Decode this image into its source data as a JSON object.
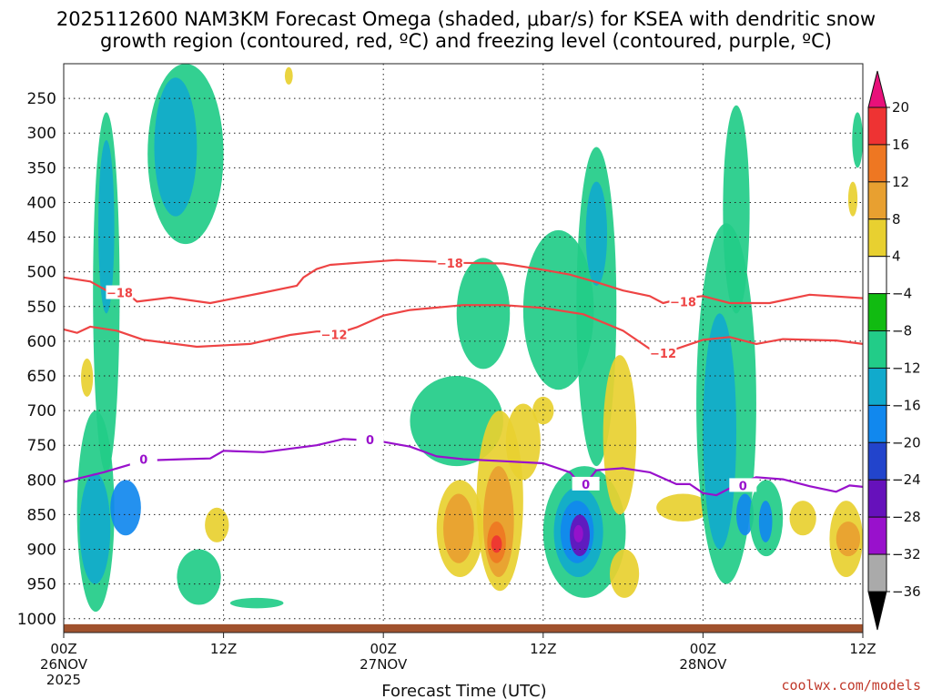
{
  "chart_data": {
    "type": "heatmap",
    "title_line1": "2025112600 NAM3KM Forecast Omega (shaded, μbar/s) for KSEA with dendritic snow",
    "title_line2": "growth region (contoured, red, ºC) and freezing level (contoured, purple, ºC)",
    "xlabel": "Forecast Time (UTC)",
    "xlim": [
      0,
      60
    ],
    "ylim": [
      1020,
      200
    ],
    "x_ticks": [
      {
        "x": 0,
        "l1": "00Z",
        "l2": "26NOV",
        "l3": "2025"
      },
      {
        "x": 12,
        "l1": "12Z",
        "l2": "",
        "l3": ""
      },
      {
        "x": 24,
        "l1": "00Z",
        "l2": "27NOV",
        "l3": ""
      },
      {
        "x": 36,
        "l1": "12Z",
        "l2": "",
        "l3": ""
      },
      {
        "x": 48,
        "l1": "00Z",
        "l2": "28NOV",
        "l3": ""
      },
      {
        "x": 60,
        "l1": "12Z",
        "l2": "",
        "l3": ""
      }
    ],
    "y_ticks": [
      "250",
      "300",
      "350",
      "400",
      "450",
      "500",
      "550",
      "600",
      "650",
      "700",
      "750",
      "800",
      "850",
      "900",
      "950",
      "1000"
    ],
    "colorbar": {
      "levels": [
        "20",
        "16",
        "12",
        "8",
        "4",
        "−4",
        "−8",
        "−12",
        "−16",
        "−20",
        "−24",
        "−28",
        "−32",
        "−36"
      ],
      "colors": [
        "#e8107a",
        "#ee3333",
        "#ee7722",
        "#e8a030",
        "#e8d030",
        "#ffffff",
        "#11bb11",
        "#22cc88",
        "#11aacc",
        "#1188ee",
        "#2244cc",
        "#6611bb",
        "#9911cc",
        "#aaaaaa",
        "#000000"
      ]
    },
    "contours": [
      {
        "name": "dgz-top-minus18",
        "label": "−18",
        "label_at": [
          [
            4.2,
            530
          ],
          [
            29,
            487
          ],
          [
            46.5,
            543
          ]
        ],
        "color": "#ee4444",
        "points": [
          [
            0,
            508
          ],
          [
            2,
            514
          ],
          [
            3.5,
            530
          ],
          [
            4.7,
            530
          ],
          [
            5.5,
            543
          ],
          [
            8,
            537
          ],
          [
            11,
            545
          ],
          [
            15,
            530
          ],
          [
            17.5,
            520
          ],
          [
            18,
            508
          ],
          [
            19,
            496
          ],
          [
            20,
            490
          ],
          [
            22,
            487
          ],
          [
            25,
            483
          ],
          [
            30,
            487
          ],
          [
            33,
            488
          ],
          [
            36,
            497
          ],
          [
            38,
            504
          ],
          [
            40,
            515
          ],
          [
            42,
            527
          ],
          [
            44,
            535
          ],
          [
            45,
            545
          ],
          [
            46.5,
            538
          ],
          [
            48,
            535
          ],
          [
            50,
            545
          ],
          [
            53,
            545
          ],
          [
            56,
            533
          ],
          [
            60,
            538
          ]
        ]
      },
      {
        "name": "dgz-bottom-minus12",
        "label": "−12",
        "label_at": [
          [
            20.3,
            590
          ],
          [
            45,
            617
          ]
        ],
        "color": "#ee4444",
        "points": [
          [
            0,
            583
          ],
          [
            1,
            588
          ],
          [
            2,
            579
          ],
          [
            4,
            585
          ],
          [
            6,
            598
          ],
          [
            10,
            608
          ],
          [
            14,
            604
          ],
          [
            17,
            591
          ],
          [
            19,
            586
          ],
          [
            21,
            586
          ],
          [
            22,
            580
          ],
          [
            24,
            563
          ],
          [
            26,
            555
          ],
          [
            30,
            548
          ],
          [
            33,
            548
          ],
          [
            36,
            552
          ],
          [
            39,
            561
          ],
          [
            42,
            585
          ],
          [
            44,
            611
          ],
          [
            46,
            611
          ],
          [
            48,
            598
          ],
          [
            50,
            594
          ],
          [
            52,
            604
          ],
          [
            54,
            597
          ],
          [
            58,
            599
          ],
          [
            60,
            604
          ]
        ]
      },
      {
        "name": "freezing-level-0c",
        "label": "0",
        "label_at": [
          [
            6,
            770
          ],
          [
            23,
            742
          ],
          [
            39.2,
            806
          ],
          [
            51,
            808
          ]
        ],
        "color": "#9911cc",
        "points": [
          [
            0,
            803
          ],
          [
            3,
            789
          ],
          [
            6,
            772
          ],
          [
            9,
            770
          ],
          [
            11,
            769
          ],
          [
            12,
            758
          ],
          [
            15,
            760
          ],
          [
            19,
            750
          ],
          [
            21,
            741
          ],
          [
            22,
            742
          ],
          [
            24,
            745
          ],
          [
            26,
            752
          ],
          [
            28,
            766
          ],
          [
            30,
            770
          ],
          [
            33,
            773
          ],
          [
            36,
            776
          ],
          [
            38,
            789
          ],
          [
            39,
            810
          ],
          [
            40,
            786
          ],
          [
            42,
            783
          ],
          [
            44,
            789
          ],
          [
            46,
            806
          ],
          [
            47,
            806
          ],
          [
            48,
            819
          ],
          [
            49,
            822
          ],
          [
            50,
            812
          ],
          [
            52,
            796
          ],
          [
            54,
            799
          ],
          [
            56,
            809
          ],
          [
            58,
            817
          ],
          [
            59,
            808
          ],
          [
            60,
            810
          ]
        ]
      }
    ],
    "omega_regions": [
      {
        "v": -8,
        "x": [
          1.0,
          3.8
        ],
        "y": [
          700,
          990
        ]
      },
      {
        "v": -12,
        "x": [
          1.2,
          3.5
        ],
        "y": [
          790,
          950
        ]
      },
      {
        "v": -16,
        "x": [
          3.5,
          5.8
        ],
        "y": [
          800,
          880
        ]
      },
      {
        "v": -8,
        "x": [
          2.2,
          4.2
        ],
        "y": [
          270,
          790
        ]
      },
      {
        "v": -12,
        "x": [
          2.6,
          3.8
        ],
        "y": [
          310,
          560
        ]
      },
      {
        "v": -8,
        "x": [
          6.3,
          12.0
        ],
        "y": [
          200,
          460
        ]
      },
      {
        "v": -12,
        "x": [
          6.8,
          10.0
        ],
        "y": [
          220,
          420
        ]
      },
      {
        "v": -8,
        "x": [
          8.5,
          11.8
        ],
        "y": [
          900,
          980
        ]
      },
      {
        "v": -8,
        "x": [
          12.5,
          16.5
        ],
        "y": [
          970,
          985
        ]
      },
      {
        "v": 4,
        "x": [
          10.6,
          12.4
        ],
        "y": [
          840,
          890
        ]
      },
      {
        "v": 4,
        "x": [
          1.3,
          2.2
        ],
        "y": [
          625,
          680
        ]
      },
      {
        "v": 4,
        "x": [
          16.6,
          17.2
        ],
        "y": [
          205,
          230
        ]
      },
      {
        "v": -8,
        "x": [
          26.0,
          33.0
        ],
        "y": [
          650,
          780
        ]
      },
      {
        "v": -8,
        "x": [
          29.5,
          33.5
        ],
        "y": [
          480,
          640
        ]
      },
      {
        "v": -8,
        "x": [
          34.5,
          39.8
        ],
        "y": [
          440,
          670
        ]
      },
      {
        "v": 4,
        "x": [
          28.0,
          31.5
        ],
        "y": [
          800,
          940
        ]
      },
      {
        "v": 8,
        "x": [
          28.5,
          30.8
        ],
        "y": [
          820,
          920
        ]
      },
      {
        "v": 4,
        "x": [
          31.0,
          34.5
        ],
        "y": [
          700,
          960
        ]
      },
      {
        "v": 8,
        "x": [
          31.5,
          33.8
        ],
        "y": [
          780,
          940
        ]
      },
      {
        "v": 12,
        "x": [
          31.8,
          33.2
        ],
        "y": [
          860,
          920
        ]
      },
      {
        "v": 16,
        "x": [
          32.1,
          32.9
        ],
        "y": [
          880,
          905
        ]
      },
      {
        "v": 4,
        "x": [
          33.2,
          35.8
        ],
        "y": [
          690,
          800
        ]
      },
      {
        "v": 4,
        "x": [
          35.2,
          36.8
        ],
        "y": [
          680,
          720
        ]
      },
      {
        "v": -8,
        "x": [
          36.0,
          42.2
        ],
        "y": [
          780,
          970
        ]
      },
      {
        "v": -12,
        "x": [
          36.8,
          40.5
        ],
        "y": [
          810,
          940
        ]
      },
      {
        "v": -16,
        "x": [
          37.3,
          39.8
        ],
        "y": [
          830,
          920
        ]
      },
      {
        "v": -24,
        "x": [
          38.0,
          39.5
        ],
        "y": [
          850,
          910
        ]
      },
      {
        "v": -28,
        "x": [
          38.3,
          39.0
        ],
        "y": [
          865,
          890
        ]
      },
      {
        "v": -8,
        "x": [
          38.5,
          41.5
        ],
        "y": [
          320,
          780
        ]
      },
      {
        "v": -12,
        "x": [
          39.2,
          40.8
        ],
        "y": [
          370,
          520
        ]
      },
      {
        "v": 4,
        "x": [
          40.5,
          43.0
        ],
        "y": [
          620,
          850
        ]
      },
      {
        "v": 4,
        "x": [
          41.0,
          43.2
        ],
        "y": [
          900,
          970
        ]
      },
      {
        "v": 4,
        "x": [
          44.5,
          48.5
        ],
        "y": [
          820,
          860
        ]
      },
      {
        "v": -8,
        "x": [
          47.5,
          52.0
        ],
        "y": [
          430,
          950
        ]
      },
      {
        "v": -12,
        "x": [
          48.0,
          50.5
        ],
        "y": [
          560,
          900
        ]
      },
      {
        "v": -16,
        "x": [
          50.5,
          51.8
        ],
        "y": [
          820,
          880
        ]
      },
      {
        "v": -8,
        "x": [
          49.5,
          51.5
        ],
        "y": [
          260,
          560
        ]
      },
      {
        "v": -8,
        "x": [
          51.5,
          54.0
        ],
        "y": [
          800,
          910
        ]
      },
      {
        "v": -16,
        "x": [
          52.2,
          53.2
        ],
        "y": [
          830,
          890
        ]
      },
      {
        "v": 4,
        "x": [
          54.5,
          56.5
        ],
        "y": [
          830,
          880
        ]
      },
      {
        "v": 4,
        "x": [
          57.5,
          60.0
        ],
        "y": [
          830,
          940
        ]
      },
      {
        "v": 8,
        "x": [
          58.0,
          59.8
        ],
        "y": [
          860,
          910
        ]
      },
      {
        "v": -8,
        "x": [
          59.2,
          60.0
        ],
        "y": [
          270,
          350
        ]
      },
      {
        "v": 4,
        "x": [
          58.9,
          59.6
        ],
        "y": [
          370,
          420
        ]
      }
    ],
    "terrain_color": "#a0522d"
  },
  "credit": "coolwx.com/models"
}
